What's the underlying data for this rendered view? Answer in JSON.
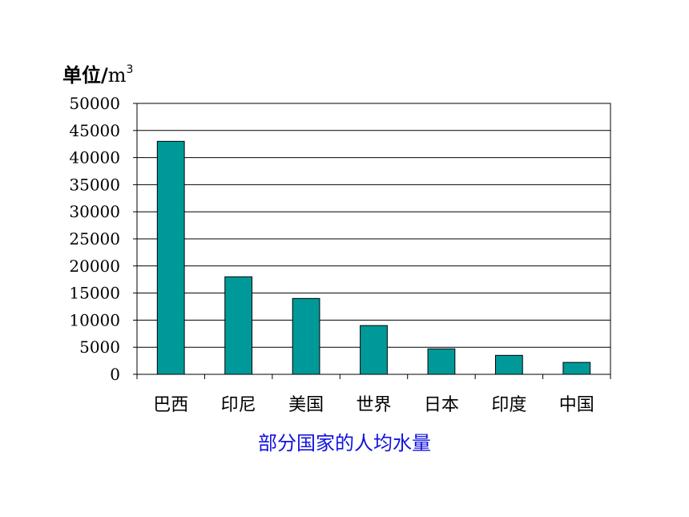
{
  "unit_label": {
    "text": "单位/",
    "unit": "m",
    "exponent": "3"
  },
  "chart_data": {
    "type": "bar",
    "title": "部分国家的人均水量",
    "ylabel": "单位/m3",
    "xlabel": "",
    "categories": [
      "巴西",
      "印尼",
      "美国",
      "世界",
      "日本",
      "印度",
      "中国"
    ],
    "values": [
      43000,
      18000,
      14000,
      9000,
      4700,
      3500,
      2200
    ],
    "ylim": [
      0,
      50000
    ],
    "yticks": [
      "0",
      "5000",
      "10000",
      "15000",
      "20000",
      "25000",
      "30000",
      "35000",
      "40000",
      "45000",
      "50000"
    ],
    "grid": true,
    "legend": "none",
    "bar_color": "#009999"
  }
}
